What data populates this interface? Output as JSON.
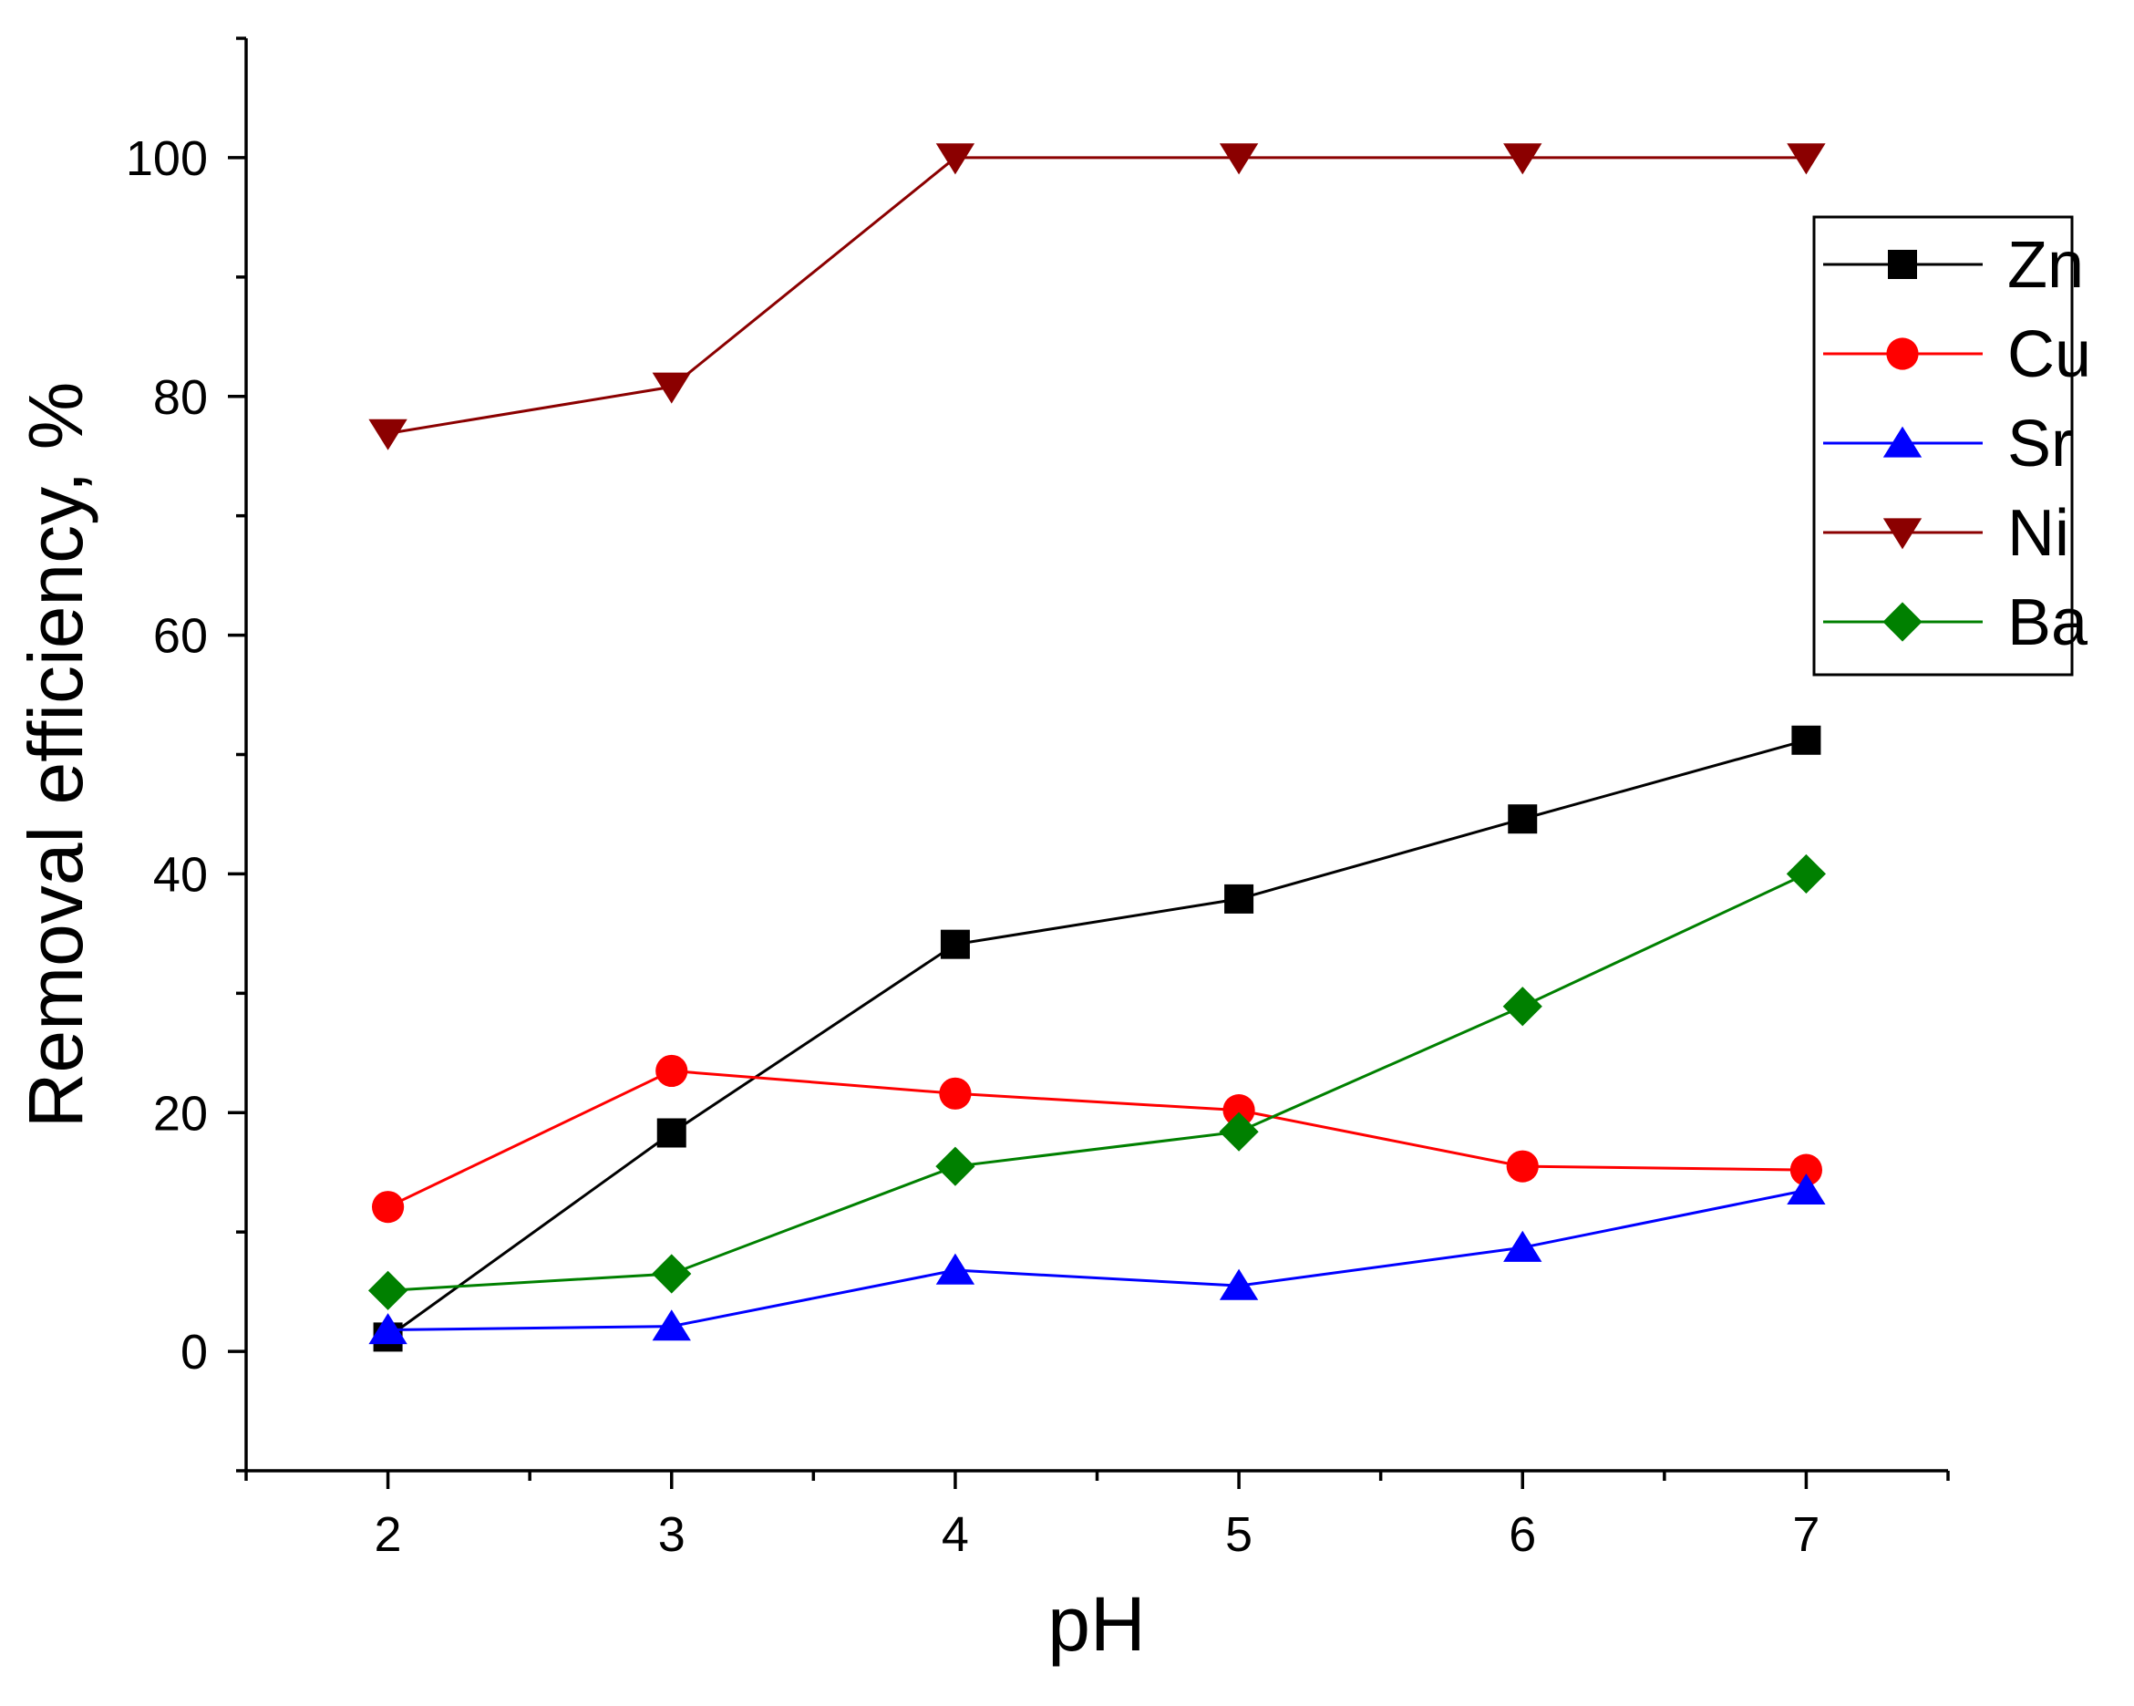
{
  "chart_data": {
    "type": "line",
    "title": "",
    "xlabel": "pH",
    "ylabel": "Removal efficiency, %",
    "x": [
      2,
      3,
      4,
      5,
      6,
      7
    ],
    "xlim": [
      1.5,
      7.5
    ],
    "ylim": [
      -10,
      110
    ],
    "xticks": [
      2,
      3,
      4,
      5,
      6,
      7
    ],
    "yticks": [
      0,
      20,
      40,
      60,
      80,
      100
    ],
    "grid": false,
    "legend_position": "top-right",
    "series": [
      {
        "name": "Zn",
        "color": "#000000",
        "marker": "square",
        "values": [
          1.2,
          18.3,
          34.1,
          37.9,
          44.6,
          51.2
        ]
      },
      {
        "name": "Cu",
        "color": "#ff0000",
        "marker": "circle",
        "values": [
          12.1,
          23.5,
          21.6,
          20.2,
          15.5,
          15.2
        ]
      },
      {
        "name": "Sr",
        "color": "#0000ff",
        "marker": "triangle-up",
        "values": [
          1.8,
          2.1,
          6.8,
          5.5,
          8.7,
          13.5
        ]
      },
      {
        "name": "Ni",
        "color": "#8b0000",
        "marker": "triangle-down",
        "values": [
          76.9,
          80.8,
          100,
          100,
          100,
          100
        ]
      },
      {
        "name": "Ba",
        "color": "#008000",
        "marker": "diamond",
        "values": [
          5.1,
          6.5,
          15.5,
          18.4,
          28.9,
          40.0
        ]
      }
    ]
  }
}
